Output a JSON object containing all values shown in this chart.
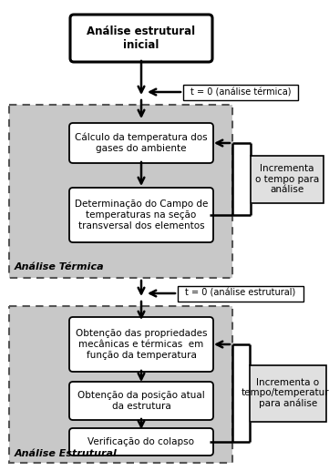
{
  "fig_width": 3.61,
  "fig_height": 5.17,
  "dpi": 100,
  "bg_color": "#ffffff",
  "gray_bg": "#c8c8c8",
  "box_bg": "#ffffff",
  "box_edge": "#000000",
  "dashed_edge": "#555555",
  "box_top_text": "Análise estrutural\ninicial",
  "box_t0_termica": "t = 0 (análise térmica)",
  "box_calctemp": "Cálculo da temperatura dos\ngases do ambiente",
  "box_detcampo": "Determinação do Campo de\ntemperaturas na seção\ntransversal dos elementos",
  "label_termica": "Análise Térmica",
  "box_incrementa1": "Incrementa\no tempo para\nanálise",
  "box_t0_estrutural": "t = 0 (análise estrutural)",
  "box_obtencao": "Obtenção das propriedades\nmecânicas e térmicas  em\nfunção da temperatura",
  "box_posicao": "Obtenção da posição atual\nda estrutura",
  "box_colapso": "Verificação do colapso",
  "label_estrutural": "Análise Estrutural",
  "box_incrementa2": "Incrementa o\ntempo/temperatura\npara análise"
}
